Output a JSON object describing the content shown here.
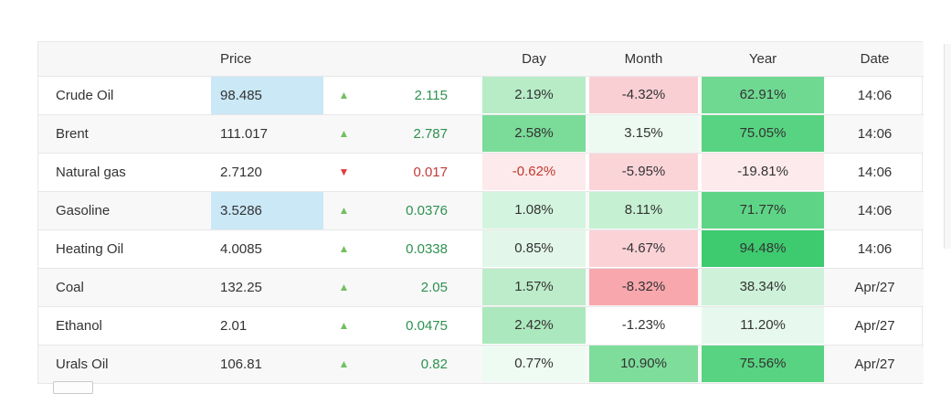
{
  "columns": {
    "name": "",
    "price": "Price",
    "day": "Day",
    "month": "Month",
    "year": "Year",
    "date": "Date"
  },
  "accents": {
    "flash_blue": "#cae8f6",
    "row_stripe": "#f8f8f8",
    "border_gray": "#e7e7e7",
    "up_green": "#74bf63",
    "down_red": "#e23a3a",
    "change_pos_text": "#2d9150",
    "change_neg_text": "#c23b3b"
  },
  "rows": [
    {
      "name": "Crude Oil",
      "price": "98.485",
      "price_bg": "#cae8f6",
      "arrow": "▲",
      "arrow_icon": "up-arrow-icon",
      "arrow_color": "#74bf63",
      "change": "2.115",
      "change_color": "#2d9150",
      "day": {
        "text": "2.19%",
        "bg": "#b7ecc7",
        "color": "#333333"
      },
      "month": {
        "text": "-4.32%",
        "bg": "#f9cfd3",
        "color": "#333333"
      },
      "year": {
        "text": "62.91%",
        "bg": "#6fd992",
        "color": "#333333"
      },
      "date": "14:06"
    },
    {
      "name": "Brent",
      "price": "111.017",
      "arrow": "▲",
      "arrow_icon": "up-arrow-icon",
      "arrow_color": "#74bf63",
      "change": "2.787",
      "change_color": "#2d9150",
      "day": {
        "text": "2.58%",
        "bg": "#7bdb99",
        "color": "#333333"
      },
      "month": {
        "text": "3.15%",
        "bg": "#edfaf1",
        "color": "#333333"
      },
      "year": {
        "text": "75.05%",
        "bg": "#58d381",
        "color": "#333333"
      },
      "date": "14:06"
    },
    {
      "name": "Natural gas",
      "price": "2.7120",
      "arrow": "▼",
      "arrow_icon": "down-arrow-icon",
      "arrow_color": "#e23a3a",
      "change": "0.017",
      "change_color": "#c23b3b",
      "day": {
        "text": "-0.62%",
        "bg": "#fdeaec",
        "color": "#c0392c"
      },
      "month": {
        "text": "-5.95%",
        "bg": "#fbd4d8",
        "color": "#333333"
      },
      "year": {
        "text": "-19.81%",
        "bg": "#fdeaed",
        "color": "#333333"
      },
      "date": "14:06"
    },
    {
      "name": "Gasoline",
      "price": "3.5286",
      "price_bg": "#cae8f6",
      "arrow": "▲",
      "arrow_icon": "up-arrow-icon",
      "arrow_color": "#74bf63",
      "change": "0.0376",
      "change_color": "#2d9150",
      "day": {
        "text": "1.08%",
        "bg": "#d3f4de",
        "color": "#333333"
      },
      "month": {
        "text": "8.11%",
        "bg": "#c5f0d2",
        "color": "#333333"
      },
      "year": {
        "text": "71.77%",
        "bg": "#5ed586",
        "color": "#333333"
      },
      "date": "14:06"
    },
    {
      "name": "Heating Oil",
      "price": "4.0085",
      "arrow": "▲",
      "arrow_icon": "up-arrow-icon",
      "arrow_color": "#74bf63",
      "change": "0.0338",
      "change_color": "#2d9150",
      "day": {
        "text": "0.85%",
        "bg": "#e2f7e9",
        "color": "#333333"
      },
      "month": {
        "text": "-4.67%",
        "bg": "#fbd3d7",
        "color": "#333333"
      },
      "year": {
        "text": "94.48%",
        "bg": "#3ecb70",
        "color": "#333333"
      },
      "date": "14:06"
    },
    {
      "name": "Coal",
      "price": "132.25",
      "arrow": "▲",
      "arrow_icon": "up-arrow-icon",
      "arrow_color": "#74bf63",
      "change": "2.05",
      "change_color": "#2d9150",
      "day": {
        "text": "1.57%",
        "bg": "#bdecca",
        "color": "#333333"
      },
      "month": {
        "text": "-8.32%",
        "bg": "#f8a7ad",
        "color": "#333333"
      },
      "year": {
        "text": "38.34%",
        "bg": "#cdf2d9",
        "color": "#333333"
      },
      "date": "Apr/27"
    },
    {
      "name": "Ethanol",
      "price": "2.01",
      "arrow": "▲",
      "arrow_icon": "up-arrow-icon",
      "arrow_color": "#74bf63",
      "change": "0.0475",
      "change_color": "#2d9150",
      "day": {
        "text": "2.42%",
        "bg": "#abe8bd",
        "color": "#333333"
      },
      "month": {
        "text": "-1.23%",
        "bg": "#ffffff",
        "color": "#333333"
      },
      "year": {
        "text": "11.20%",
        "bg": "#e7f9ee",
        "color": "#333333"
      },
      "date": "Apr/27"
    },
    {
      "name": "Urals Oil",
      "price": "106.81",
      "arrow": "▲",
      "arrow_icon": "up-arrow-icon",
      "arrow_color": "#74bf63",
      "change": "0.82",
      "change_color": "#2d9150",
      "day": {
        "text": "0.77%",
        "bg": "#eefbf3",
        "color": "#333333"
      },
      "month": {
        "text": "10.90%",
        "bg": "#7edd9b",
        "color": "#333333"
      },
      "year": {
        "text": "75.56%",
        "bg": "#58d381",
        "color": "#333333"
      },
      "date": "Apr/27"
    }
  ]
}
